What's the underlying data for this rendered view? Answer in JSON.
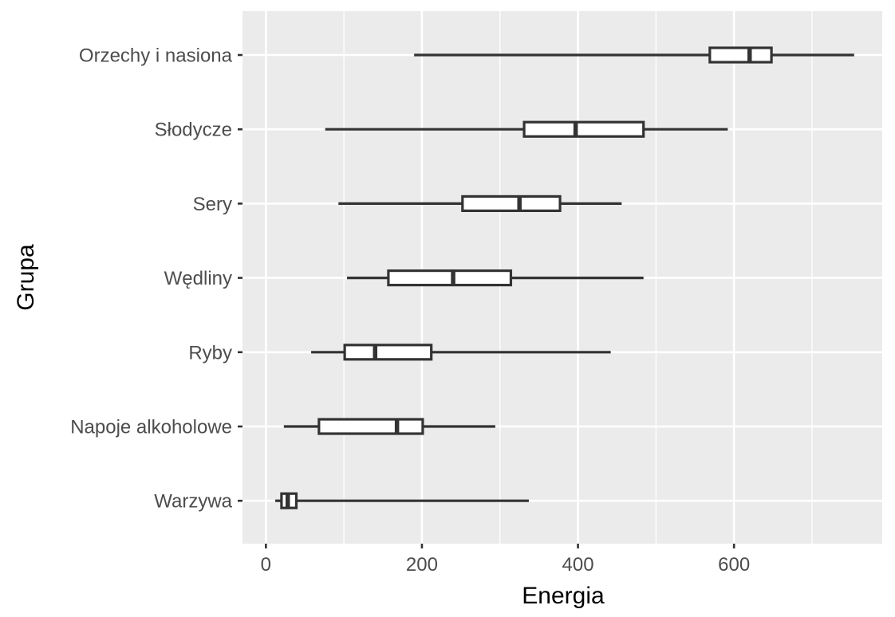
{
  "chart_data": {
    "type": "boxplot",
    "orientation": "horizontal",
    "xlabel": "Energia",
    "ylabel": "Grupa",
    "xlim": [
      -30,
      790
    ],
    "x_ticks": [
      0,
      200,
      400,
      600
    ],
    "x_minor_ticks": [
      100,
      300,
      500,
      700
    ],
    "grid": true,
    "colors": {
      "panel_background": "#ebebeb",
      "grid_line": "#ffffff",
      "box_fill": "#ffffff",
      "box_stroke": "#333333",
      "tick_mark": "#333333"
    },
    "categories": [
      "Orzechy i nasiona",
      "Słodycze",
      "Sery",
      "Wędliny",
      "Ryby",
      "Napoje alkoholowe",
      "Warzywa"
    ],
    "series": [
      {
        "name": "Orzechy i nasiona",
        "min": 190,
        "q1": 569,
        "median": 620,
        "q3": 648,
        "max": 754
      },
      {
        "name": "Słodycze",
        "min": 76,
        "q1": 331,
        "median": 397,
        "q3": 484,
        "max": 592
      },
      {
        "name": "Sery",
        "min": 93,
        "q1": 252,
        "median": 325,
        "q3": 377,
        "max": 456
      },
      {
        "name": "Wędliny",
        "min": 104,
        "q1": 157,
        "median": 240,
        "q3": 314,
        "max": 484
      },
      {
        "name": "Ryby",
        "min": 58,
        "q1": 101,
        "median": 140,
        "q3": 212,
        "max": 442
      },
      {
        "name": "Napoje alkoholowe",
        "min": 23,
        "q1": 68,
        "median": 168,
        "q3": 201,
        "max": 294
      },
      {
        "name": "Warzywa",
        "min": 12,
        "q1": 20,
        "median": 28,
        "q3": 39,
        "max": 337
      }
    ]
  }
}
